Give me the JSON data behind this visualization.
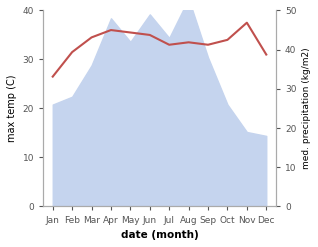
{
  "months": [
    "Jan",
    "Feb",
    "Mar",
    "Apr",
    "May",
    "Jun",
    "Jul",
    "Aug",
    "Sep",
    "Oct",
    "Nov",
    "Dec"
  ],
  "month_x": [
    0,
    1,
    2,
    3,
    4,
    5,
    6,
    7,
    8,
    9,
    10,
    11
  ],
  "temperature": [
    26.5,
    31.5,
    34.5,
    36.0,
    35.5,
    35.0,
    33.0,
    33.5,
    33.0,
    34.0,
    37.5,
    31.0
  ],
  "precipitation": [
    26,
    28,
    36,
    48,
    42,
    49,
    43,
    53,
    38,
    26,
    19,
    18
  ],
  "temp_color": "#c0504d",
  "precip_color": "#c5d4ee",
  "left_ylabel": "max temp (C)",
  "right_ylabel": "med. precipitation (kg/m2)",
  "xlabel": "date (month)",
  "ylim_left": [
    0,
    40
  ],
  "ylim_right": [
    0,
    50
  ],
  "yticks_left": [
    0,
    10,
    20,
    30,
    40
  ],
  "yticks_right": [
    0,
    10,
    20,
    30,
    40,
    50
  ],
  "bg_color": "#ffffff"
}
